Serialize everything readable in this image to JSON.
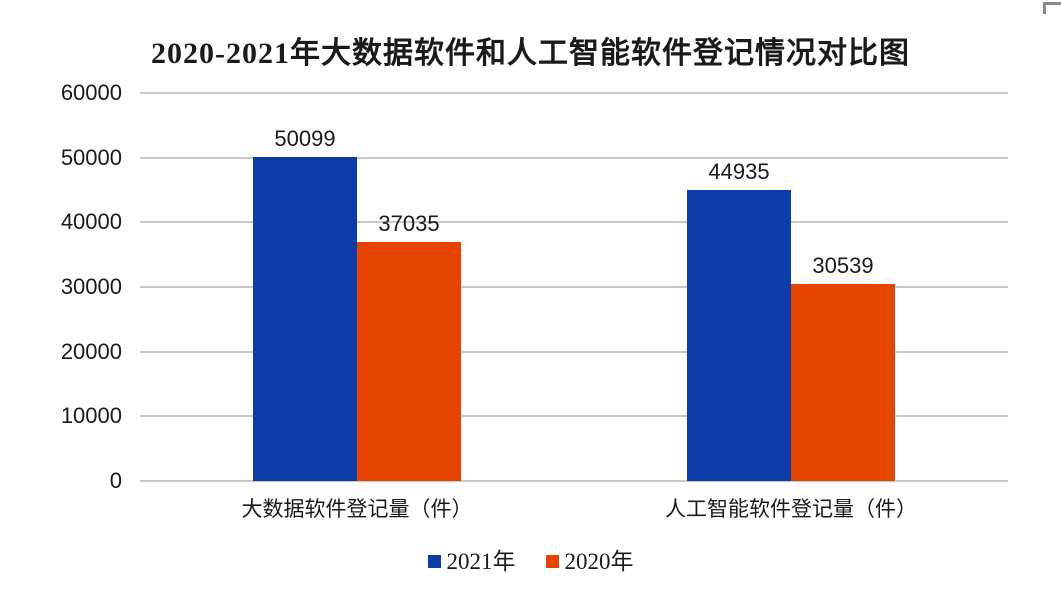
{
  "title": "2020-2021年大数据软件和人工智能软件登记情况对比图",
  "colors": {
    "series_2021_blue": "#0d3ba8",
    "series_2020_orange": "#e54500",
    "gridline": "#c8c8c8",
    "text": "#1a1a1a",
    "window_corner": "#8a8a8a"
  },
  "chart_data": {
    "type": "bar",
    "title": "2020-2021年大数据软件和人工智能软件登记情况对比图",
    "categories": [
      "大数据软件登记量（件）",
      "人工智能软件登记量（件）"
    ],
    "series": [
      {
        "name": "2021年",
        "color": "#0d3ba8",
        "values": [
          50099,
          44935
        ]
      },
      {
        "name": "2020年",
        "color": "#e54500",
        "values": [
          37035,
          30539
        ]
      }
    ],
    "data_labels": [
      [
        "50099",
        "44935"
      ],
      [
        "37035",
        "30539"
      ]
    ],
    "xlabel": "",
    "ylabel": "",
    "ylim": [
      0,
      60000
    ],
    "ytick_interval": 10000,
    "ytick_labels": [
      "0",
      "10000",
      "20000",
      "30000",
      "40000",
      "50000",
      "60000"
    ],
    "grid": true,
    "legend_position": "bottom"
  }
}
